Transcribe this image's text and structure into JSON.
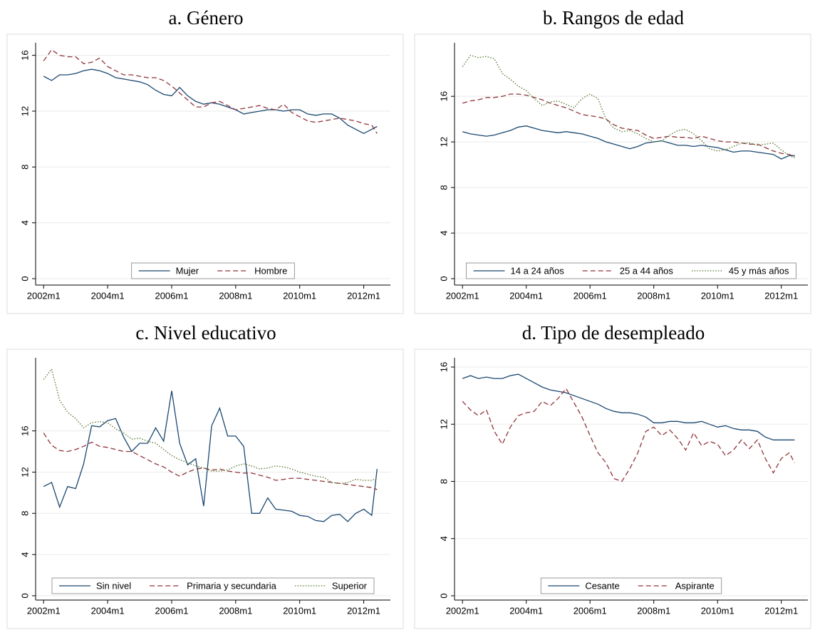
{
  "chart_data": [
    {
      "type": "line",
      "title": "a. Género",
      "x": [
        "2002m1",
        "2002m4",
        "2002m7",
        "2002m10",
        "2003m1",
        "2003m4",
        "2003m7",
        "2003m10",
        "2004m1",
        "2004m4",
        "2004m7",
        "2004m10",
        "2005m1",
        "2005m4",
        "2005m7",
        "2005m10",
        "2006m1",
        "2006m4",
        "2006m7",
        "2006m10",
        "2007m1",
        "2007m4",
        "2007m7",
        "2007m10",
        "2008m1",
        "2008m4",
        "2008m7",
        "2008m10",
        "2009m1",
        "2009m4",
        "2009m7",
        "2009m10",
        "2010m1",
        "2010m4",
        "2010m7",
        "2010m10",
        "2011m1",
        "2011m4",
        "2011m7",
        "2011m10",
        "2012m1",
        "2012m4",
        "2012m6"
      ],
      "series": [
        {
          "name": "Mujer",
          "color": "#1a476f",
          "dash": "solid",
          "values": [
            14.5,
            14.2,
            14.6,
            14.6,
            14.7,
            14.9,
            15.0,
            14.9,
            14.7,
            14.4,
            14.3,
            14.2,
            14.1,
            13.9,
            13.5,
            13.2,
            13.1,
            13.7,
            13.1,
            12.7,
            12.5,
            12.6,
            12.5,
            12.3,
            12.1,
            11.8,
            11.9,
            12.0,
            12.1,
            12.1,
            12.0,
            12.1,
            12.1,
            11.8,
            11.7,
            11.8,
            11.8,
            11.5,
            11.0,
            10.7,
            10.4,
            10.7,
            10.9
          ]
        },
        {
          "name": "Hombre",
          "color": "#90353b",
          "dash": "dashed",
          "values": [
            15.6,
            16.4,
            16.0,
            15.9,
            15.9,
            15.4,
            15.5,
            15.8,
            15.2,
            14.9,
            14.6,
            14.6,
            14.5,
            14.4,
            14.4,
            14.2,
            13.8,
            13.3,
            12.8,
            12.3,
            12.3,
            12.6,
            12.7,
            12.4,
            12.1,
            12.2,
            12.3,
            12.4,
            12.2,
            12.1,
            12.5,
            11.9,
            11.6,
            11.3,
            11.2,
            11.3,
            11.4,
            11.5,
            11.4,
            11.3,
            11.1,
            11.0,
            10.4
          ]
        }
      ],
      "xlim": [
        "2001m10",
        "2012m11"
      ],
      "xticks": [
        "2002m1",
        "2004m1",
        "2006m1",
        "2008m1",
        "2010m1",
        "2012m1"
      ],
      "ylim": [
        -0.46,
        16.9
      ],
      "yticks": [
        0,
        4,
        8,
        12,
        16
      ],
      "grid": true,
      "legend": "bottom"
    },
    {
      "type": "line",
      "title": "b. Rangos de edad",
      "x": [
        "2002m1",
        "2002m4",
        "2002m7",
        "2002m10",
        "2003m1",
        "2003m4",
        "2003m7",
        "2003m10",
        "2004m1",
        "2004m4",
        "2004m7",
        "2004m10",
        "2005m1",
        "2005m4",
        "2005m7",
        "2005m10",
        "2006m1",
        "2006m4",
        "2006m7",
        "2006m10",
        "2007m1",
        "2007m4",
        "2007m7",
        "2007m10",
        "2008m1",
        "2008m4",
        "2008m7",
        "2008m10",
        "2009m1",
        "2009m4",
        "2009m7",
        "2009m10",
        "2010m1",
        "2010m4",
        "2010m7",
        "2010m10",
        "2011m1",
        "2011m4",
        "2011m7",
        "2011m10",
        "2012m1",
        "2012m4",
        "2012m6"
      ],
      "series": [
        {
          "name": "14 a 24 años",
          "color": "#1a476f",
          "dash": "solid",
          "values": [
            12.9,
            12.7,
            12.6,
            12.5,
            12.6,
            12.8,
            13.0,
            13.3,
            13.4,
            13.2,
            13.0,
            12.9,
            12.8,
            12.9,
            12.8,
            12.7,
            12.5,
            12.3,
            12.0,
            11.8,
            11.6,
            11.4,
            11.6,
            11.9,
            12.0,
            12.1,
            11.9,
            11.7,
            11.7,
            11.6,
            11.7,
            11.6,
            11.5,
            11.3,
            11.1,
            11.2,
            11.2,
            11.1,
            11.0,
            10.9,
            10.5,
            10.8,
            10.8
          ]
        },
        {
          "name": "25 a 44 años",
          "color": "#90353b",
          "dash": "dashed",
          "values": [
            15.4,
            15.6,
            15.7,
            15.9,
            15.9,
            16.0,
            16.2,
            16.2,
            16.1,
            15.9,
            15.7,
            15.4,
            15.2,
            15.0,
            14.7,
            14.4,
            14.3,
            14.2,
            14.0,
            13.5,
            13.2,
            13.1,
            13.0,
            12.6,
            12.3,
            12.4,
            12.5,
            12.4,
            12.4,
            12.3,
            12.5,
            12.3,
            12.1,
            12.0,
            12.0,
            11.9,
            11.8,
            11.8,
            11.5,
            11.2,
            11.0,
            10.9,
            10.7
          ]
        },
        {
          "name": "45 y más años",
          "color": "#55752f",
          "dash": "dotted",
          "values": [
            18.6,
            19.6,
            19.4,
            19.5,
            19.3,
            18.0,
            17.5,
            16.9,
            16.5,
            15.8,
            15.2,
            15.5,
            15.6,
            15.3,
            15.0,
            15.8,
            16.2,
            15.8,
            14.0,
            13.2,
            12.9,
            13.0,
            12.7,
            12.3,
            12.0,
            12.1,
            12.6,
            13.0,
            13.1,
            12.7,
            12.1,
            11.4,
            11.2,
            11.3,
            11.6,
            11.9,
            11.9,
            11.7,
            11.8,
            11.9,
            11.3,
            10.8,
            10.6
          ]
        }
      ],
      "xlim": [
        "2001m10",
        "2012m11"
      ],
      "xticks": [
        "2002m1",
        "2004m1",
        "2006m1",
        "2008m1",
        "2010m1",
        "2012m1"
      ],
      "ylim": [
        -0.56,
        20.7
      ],
      "yticks": [
        0,
        4,
        8,
        12,
        16
      ],
      "grid": true,
      "legend": "bottom"
    },
    {
      "type": "line",
      "title": "c. Nivel educativo",
      "x": [
        "2002m1",
        "2002m4",
        "2002m7",
        "2002m10",
        "2003m1",
        "2003m4",
        "2003m7",
        "2003m10",
        "2004m1",
        "2004m4",
        "2004m7",
        "2004m10",
        "2005m1",
        "2005m4",
        "2005m7",
        "2005m10",
        "2006m1",
        "2006m4",
        "2006m7",
        "2006m10",
        "2007m1",
        "2007m4",
        "2007m7",
        "2007m10",
        "2008m1",
        "2008m4",
        "2008m7",
        "2008m10",
        "2009m1",
        "2009m4",
        "2009m7",
        "2009m10",
        "2010m1",
        "2010m4",
        "2010m7",
        "2010m10",
        "2011m1",
        "2011m4",
        "2011m7",
        "2011m10",
        "2012m1",
        "2012m4",
        "2012m6"
      ],
      "series": [
        {
          "name": "Sin nivel",
          "color": "#1a476f",
          "dash": "solid",
          "values": [
            10.6,
            11.0,
            8.6,
            10.6,
            10.4,
            12.8,
            16.5,
            16.4,
            17.0,
            17.2,
            15.4,
            14.0,
            14.8,
            14.8,
            16.3,
            15.0,
            19.9,
            14.8,
            12.7,
            13.3,
            8.7,
            16.5,
            18.2,
            15.5,
            15.5,
            14.5,
            8.0,
            8.0,
            9.5,
            8.4,
            8.3,
            8.2,
            7.8,
            7.7,
            7.3,
            7.2,
            7.8,
            7.9,
            7.2,
            8.0,
            8.4,
            7.8,
            12.3
          ]
        },
        {
          "name": "Primaria y secundaria",
          "color": "#90353b",
          "dash": "dashed",
          "values": [
            15.8,
            14.6,
            14.1,
            14.0,
            14.2,
            14.5,
            14.9,
            14.5,
            14.4,
            14.2,
            14.0,
            14.0,
            13.6,
            13.2,
            12.8,
            12.5,
            12.0,
            11.6,
            12.0,
            12.3,
            12.4,
            12.2,
            12.3,
            12.1,
            12.0,
            11.9,
            11.9,
            11.7,
            11.5,
            11.2,
            11.3,
            11.4,
            11.4,
            11.3,
            11.2,
            11.1,
            11.0,
            10.9,
            10.8,
            10.7,
            10.6,
            10.5,
            10.3
          ]
        },
        {
          "name": "Superior",
          "color": "#55752f",
          "dash": "dotted",
          "values": [
            21.0,
            22.0,
            19.0,
            17.8,
            17.2,
            16.3,
            16.8,
            16.9,
            16.8,
            16.2,
            15.8,
            15.2,
            15.3,
            15.0,
            14.8,
            14.2,
            13.6,
            13.2,
            12.9,
            12.6,
            12.4,
            12.1,
            12.1,
            12.2,
            12.6,
            12.8,
            12.6,
            12.3,
            12.4,
            12.6,
            12.5,
            12.3,
            12.0,
            11.8,
            11.6,
            11.5,
            11.0,
            10.9,
            11.0,
            11.3,
            11.2,
            11.2,
            11.4
          ]
        }
      ],
      "xlim": [
        "2001m10",
        "2012m11"
      ],
      "xticks": [
        "2002m1",
        "2004m1",
        "2006m1",
        "2008m1",
        "2010m1",
        "2012m1"
      ],
      "ylim": [
        -0.42,
        23.1
      ],
      "yticks": [
        0,
        4,
        8,
        12,
        16
      ],
      "grid": true,
      "legend": "bottom"
    },
    {
      "type": "line",
      "title": "d. Tipo de desempleado",
      "x": [
        "2002m1",
        "2002m4",
        "2002m7",
        "2002m10",
        "2003m1",
        "2003m4",
        "2003m7",
        "2003m10",
        "2004m1",
        "2004m4",
        "2004m7",
        "2004m10",
        "2005m1",
        "2005m4",
        "2005m7",
        "2005m10",
        "2006m1",
        "2006m4",
        "2006m7",
        "2006m10",
        "2007m1",
        "2007m4",
        "2007m7",
        "2007m10",
        "2008m1",
        "2008m4",
        "2008m7",
        "2008m10",
        "2009m1",
        "2009m4",
        "2009m7",
        "2009m10",
        "2010m1",
        "2010m4",
        "2010m7",
        "2010m10",
        "2011m1",
        "2011m4",
        "2011m7",
        "2011m10",
        "2012m1",
        "2012m4",
        "2012m6"
      ],
      "series": [
        {
          "name": "Cesante",
          "color": "#1a476f",
          "dash": "solid",
          "values": [
            15.2,
            15.4,
            15.2,
            15.3,
            15.2,
            15.2,
            15.4,
            15.5,
            15.2,
            14.9,
            14.6,
            14.4,
            14.3,
            14.2,
            14.0,
            13.8,
            13.6,
            13.4,
            13.1,
            12.9,
            12.8,
            12.8,
            12.7,
            12.5,
            12.1,
            12.1,
            12.2,
            12.2,
            12.1,
            12.1,
            12.2,
            12.0,
            11.8,
            11.9,
            11.7,
            11.6,
            11.6,
            11.5,
            11.1,
            10.9,
            10.9,
            10.9,
            10.9
          ]
        },
        {
          "name": "Aspirante",
          "color": "#90353b",
          "dash": "dashed",
          "values": [
            13.6,
            13.0,
            12.6,
            13.0,
            11.5,
            10.6,
            11.8,
            12.6,
            12.8,
            12.9,
            13.6,
            13.3,
            13.8,
            14.5,
            13.5,
            12.5,
            11.2,
            10.0,
            9.3,
            8.2,
            8.0,
            8.9,
            10.0,
            11.5,
            11.8,
            11.2,
            11.6,
            11.0,
            10.2,
            11.4,
            10.5,
            10.8,
            10.6,
            9.8,
            10.2,
            10.9,
            10.3,
            10.9,
            9.6,
            8.6,
            9.6,
            10.0,
            9.3
          ]
        }
      ],
      "xlim": [
        "2001m10",
        "2012m11"
      ],
      "xticks": [
        "2002m1",
        "2004m1",
        "2006m1",
        "2008m1",
        "2010m1",
        "2012m1"
      ],
      "ylim": [
        -0.3,
        16.65
      ],
      "yticks": [
        0,
        4,
        8,
        12,
        16
      ],
      "grid": true,
      "legend": "bottom"
    }
  ]
}
